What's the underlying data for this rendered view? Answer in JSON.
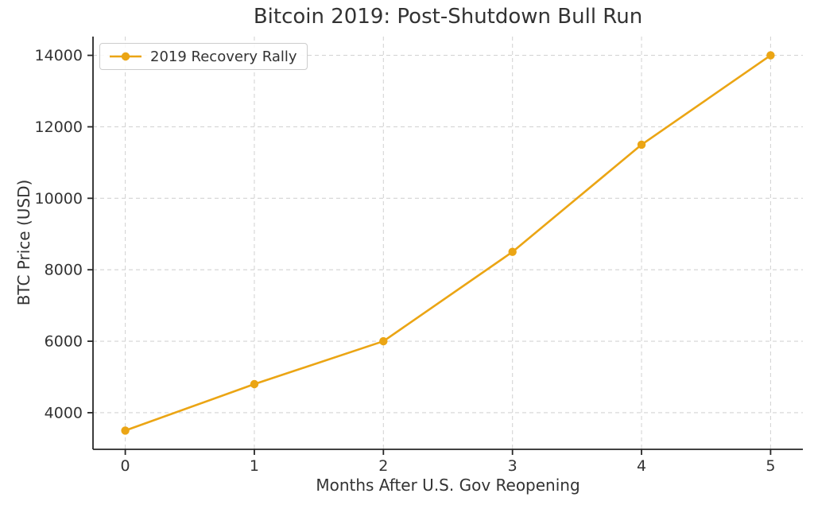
{
  "chart_data": {
    "type": "line",
    "title": "Bitcoin 2019: Post-Shutdown Bull Run",
    "xlabel": "Months After U.S. Gov Reopening",
    "ylabel": "BTC Price (USD)",
    "x": [
      0,
      1,
      2,
      3,
      4,
      5
    ],
    "series": [
      {
        "name": "2019 Recovery Rally",
        "values": [
          3500,
          4800,
          6000,
          8500,
          11500,
          14000
        ],
        "color": "#EBA514",
        "marker": "circle"
      }
    ],
    "xticks": [
      0,
      1,
      2,
      3,
      4,
      5
    ],
    "yticks": [
      4000,
      6000,
      8000,
      10000,
      12000,
      14000
    ],
    "xlim": [
      -0.25,
      5.25
    ],
    "ylim": [
      2975,
      14525
    ],
    "grid": true,
    "grid_style": "dashed",
    "legend_position": "upper-left"
  },
  "legend": {
    "label": "2019 Recovery Rally"
  },
  "colors": {
    "series_orange": "#EBA514",
    "text": "#333333",
    "spine": "#262626",
    "grid": "#d4d4d4",
    "background": "#ffffff"
  }
}
